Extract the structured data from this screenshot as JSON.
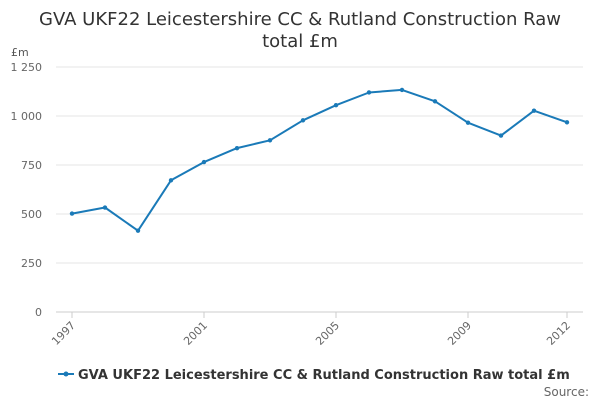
{
  "chart_data": {
    "type": "line",
    "title_lines": [
      "GVA UKF22 Leicestershire CC & Rutland Construction Raw",
      "total £m"
    ],
    "y_unit": "£m",
    "ylim": [
      0,
      1250
    ],
    "y_ticks": [
      {
        "value": 0,
        "label": "0"
      },
      {
        "value": 250,
        "label": "250"
      },
      {
        "value": 500,
        "label": "500"
      },
      {
        "value": 750,
        "label": "750"
      },
      {
        "value": 1000,
        "label": "1 000"
      },
      {
        "value": 1250,
        "label": "1 250"
      }
    ],
    "x_tick_labels": [
      "1997",
      "2001",
      "2005",
      "2009",
      "2012"
    ],
    "grid": "horizontal",
    "legend_position": "bottom",
    "series": [
      {
        "name": "GVA UKF22 Leicestershire CC & Rutland Construction Raw total £m",
        "color": "#1a7ab8",
        "points": [
          {
            "x": 1997,
            "y": 502
          },
          {
            "x": 1998,
            "y": 533
          },
          {
            "x": 1999,
            "y": 415
          },
          {
            "x": 2000,
            "y": 672
          },
          {
            "x": 2001,
            "y": 765
          },
          {
            "x": 2002,
            "y": 836
          },
          {
            "x": 2003,
            "y": 876
          },
          {
            "x": 2004,
            "y": 978
          },
          {
            "x": 2005,
            "y": 1055
          },
          {
            "x": 2006,
            "y": 1120
          },
          {
            "x": 2007,
            "y": 1133
          },
          {
            "x": 2008,
            "y": 1075
          },
          {
            "x": 2009,
            "y": 966
          },
          {
            "x": 2010,
            "y": 900
          },
          {
            "x": 2011,
            "y": 1027
          },
          {
            "x": 2012,
            "y": 968
          }
        ]
      }
    ]
  },
  "source_label": "Source:"
}
